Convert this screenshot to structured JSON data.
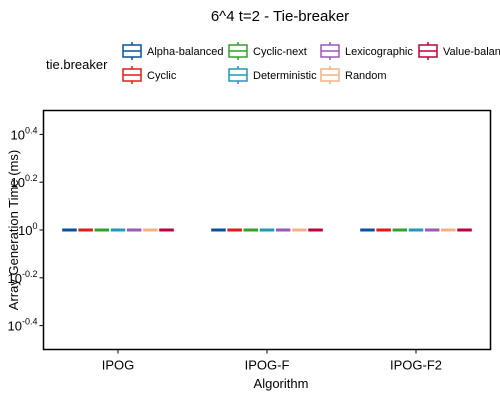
{
  "chart_data": {
    "type": "box",
    "title": "6^4 t=2 - Tie-breaker",
    "xlabel": "Algorithm",
    "ylabel": "Array Generation Time (ms)",
    "y_scale": "log10",
    "ylim_exponent": [
      -0.5,
      0.5
    ],
    "y_ticks": [
      {
        "base": "10",
        "exp": "0.4",
        "value": 0.4
      },
      {
        "base": "10",
        "exp": "0.2",
        "value": 0.2
      },
      {
        "base": "10",
        "exp": "0",
        "value": 0
      },
      {
        "base": "10",
        "exp": "-0.2",
        "value": -0.2
      },
      {
        "base": "10",
        "exp": "-0.4",
        "value": -0.4
      }
    ],
    "categories": [
      "IPOG",
      "IPOG-F",
      "IPOG-F2"
    ],
    "legend_title": "tie.breaker",
    "legend_position": "top",
    "series": [
      {
        "name": "Alpha-balanced",
        "color": "#08519c",
        "values": [
          1,
          1,
          1
        ]
      },
      {
        "name": "Cyclic",
        "color": "#e31a1c",
        "values": [
          1,
          1,
          1
        ]
      },
      {
        "name": "Cyclic-next",
        "color": "#33a02c",
        "values": [
          1,
          1,
          1
        ]
      },
      {
        "name": "Deterministic",
        "color": "#1f9bb4",
        "values": [
          1,
          1,
          1
        ]
      },
      {
        "name": "Lexicographic",
        "color": "#9b59b6",
        "values": [
          1,
          1,
          1
        ]
      },
      {
        "name": "Random",
        "color": "#f4b183",
        "values": [
          1,
          1,
          1
        ]
      },
      {
        "name": "Value-balanced",
        "color": "#c0003c",
        "values": [
          1,
          1,
          1
        ]
      }
    ]
  }
}
